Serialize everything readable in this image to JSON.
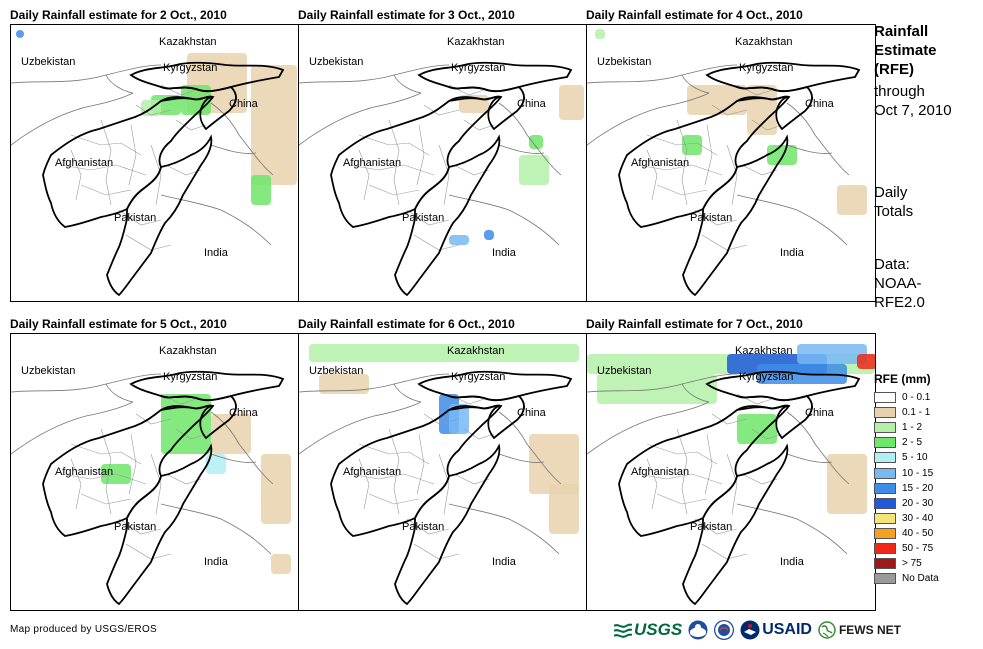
{
  "panels": [
    {
      "title": "Daily Rainfall estimate for 2 Oct., 2010"
    },
    {
      "title": "Daily Rainfall estimate for 3 Oct., 2010"
    },
    {
      "title": "Daily Rainfall estimate for 4 Oct., 2010"
    },
    {
      "title": "Daily Rainfall estimate for 5 Oct., 2010"
    },
    {
      "title": "Daily Rainfall estimate for 6 Oct., 2010"
    },
    {
      "title": "Daily Rainfall estimate for 7 Oct., 2010"
    }
  ],
  "map_labels": {
    "kazakhstan": "Kazakhstan",
    "uzbekistan": "Uzbekistan",
    "kyrgyzstan": "Kyrgyzstan",
    "china": "China",
    "afghanistan": "Afghanistan",
    "pakistan": "Pakistan",
    "india": "India"
  },
  "side": {
    "title_line1": "Rainfall",
    "title_line2": "Estimate",
    "title_line3": "(RFE)",
    "through_line1": "through",
    "through_line2": "Oct 7, 2010",
    "totals_line1": "Daily",
    "totals_line2": "Totals",
    "data_line1": "Data:",
    "data_line2": "NOAA-",
    "data_line3": "RFE2.0"
  },
  "legend": {
    "title": "RFE (mm)",
    "items": [
      {
        "label": "0 - 0.1",
        "color": "#ffffff"
      },
      {
        "label": "0.1 - 1",
        "color": "#e8d2ae"
      },
      {
        "label": "1 - 2",
        "color": "#b4f0a8"
      },
      {
        "label": "2 - 5",
        "color": "#6ee66a"
      },
      {
        "label": "5 - 10",
        "color": "#b0f0f4"
      },
      {
        "label": "10 - 15",
        "color": "#78b8f4"
      },
      {
        "label": "15 - 20",
        "color": "#3c8ce8"
      },
      {
        "label": "20 - 30",
        "color": "#1e5adc"
      },
      {
        "label": "30 - 40",
        "color": "#f4e478"
      },
      {
        "label": "40 - 50",
        "color": "#f4a020"
      },
      {
        "label": "50 - 75",
        "color": "#f02818"
      },
      {
        "label": "> 75",
        "color": "#a01818"
      },
      {
        "label": "No Data",
        "color": "#9a9a9a"
      }
    ]
  },
  "credit": "Map produced by USGS/EROS",
  "logos": {
    "usgs": "USGS",
    "usaid": "USAID",
    "fews": "FEWS NET"
  }
}
